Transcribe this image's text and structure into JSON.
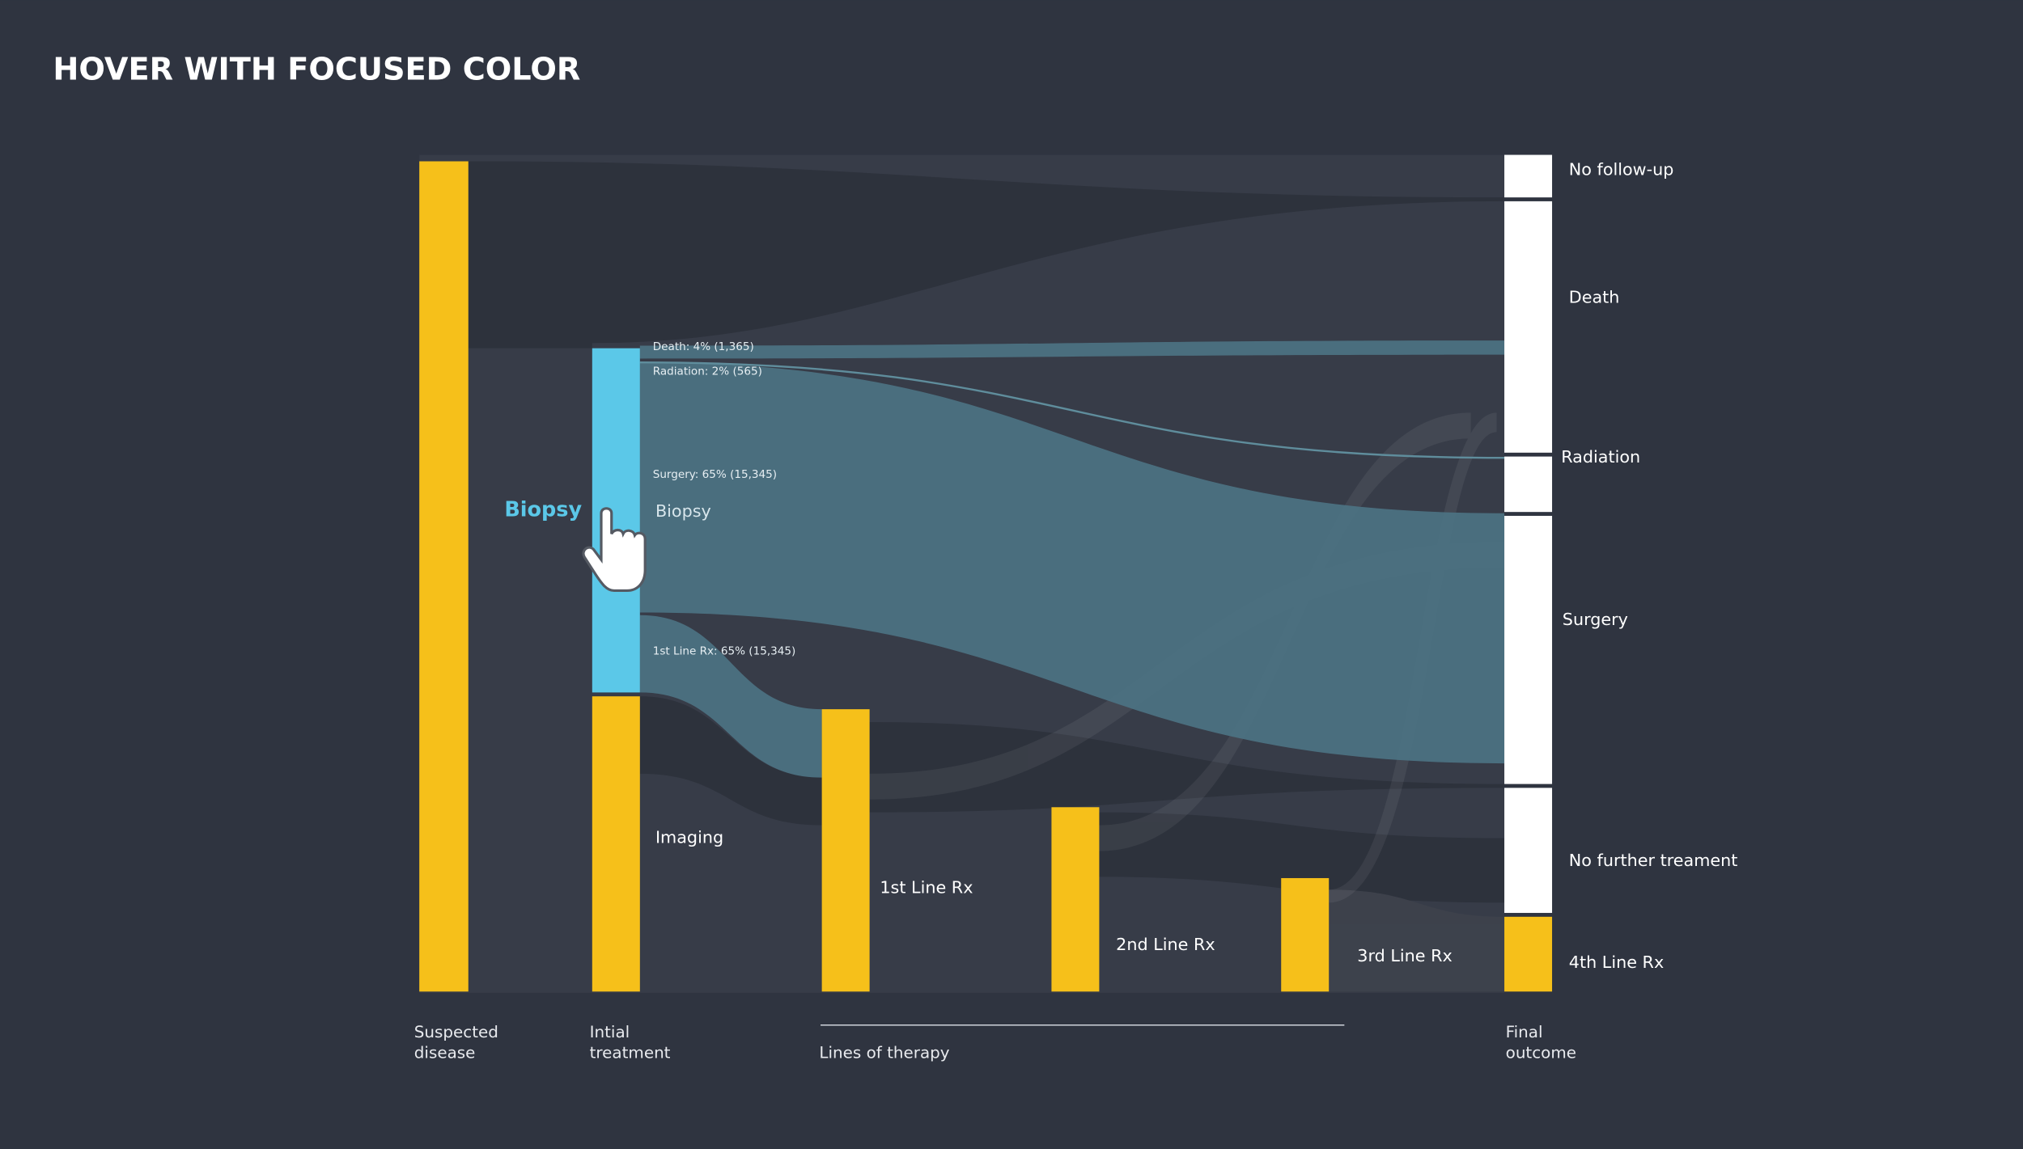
{
  "title": "HOVER WITH FOCUSED COLOR",
  "hover_label": "Biopsy",
  "nodes": [
    {
      "label": "Biopsy"
    },
    {
      "label": "Imaging"
    },
    {
      "label": "1st Line Rx"
    },
    {
      "label": "2nd Line Rx"
    },
    {
      "label": "3rd Line Rx"
    },
    {
      "label": "No follow-up"
    },
    {
      "label": "Death"
    },
    {
      "label": "Radiation"
    },
    {
      "label": "Surgery"
    },
    {
      "label": "No further treament"
    },
    {
      "label": "4th Line Rx"
    }
  ],
  "link_labels": [
    "Death: 4% (1,365)",
    "Radiation: 2% (565)",
    "Surgery: 65% (15,345)",
    "1st Line Rx: 65% (15,345)"
  ],
  "stages": [
    {
      "lines": [
        "Suspected",
        "disease"
      ]
    },
    {
      "lines": [
        "Intial",
        "treatment"
      ]
    },
    {
      "lines": [
        "Lines of therapy"
      ]
    },
    {
      "lines": [
        "Final",
        "outcome"
      ]
    }
  ]
}
